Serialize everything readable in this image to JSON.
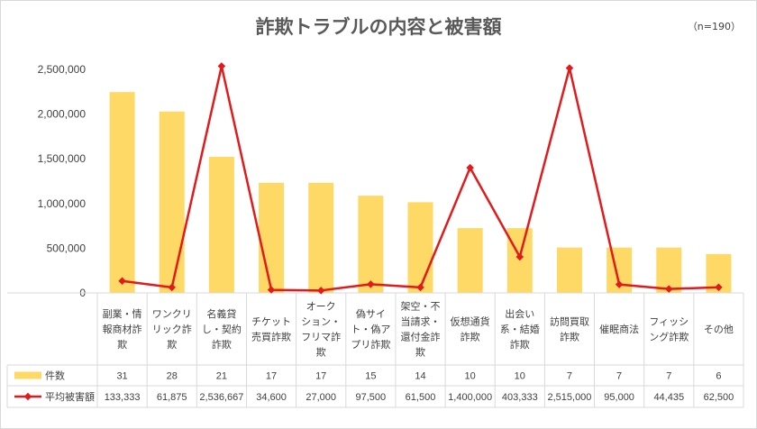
{
  "chart_data": {
    "type": "bar",
    "title": "詐欺トラブルの内容と被害額",
    "note": "（n=190）",
    "categories": [
      "副業・情報商材詐欺",
      "ワンクリック詐欺",
      "名義貸し・契約詐欺",
      "チケット売買詐欺",
      "オークション・フリマ詐欺",
      "偽サイト・偽アプリ詐欺",
      "架空・不当請求・還付金詐欺",
      "仮想通貨詐欺",
      "出会い系・結婚詐欺",
      "訪問買取詐欺",
      "催眠商法",
      "フィッシング詐欺",
      "その他"
    ],
    "category_lines": [
      [
        "副業・情",
        "報商材詐",
        "欺"
      ],
      [
        "ワンクリ",
        "リック詐",
        "欺"
      ],
      [
        "名義貸",
        "し・契約",
        "詐欺"
      ],
      [
        "チケット",
        "売買詐欺"
      ],
      [
        "オーク",
        "ション・",
        "フリマ詐",
        "欺"
      ],
      [
        "偽サイ",
        "ト・偽ア",
        "プリ詐欺"
      ],
      [
        "架空・不",
        "当請求・",
        "還付金詐",
        "欺"
      ],
      [
        "仮想通貨",
        "詐欺"
      ],
      [
        "出会い",
        "系・結婚",
        "詐欺"
      ],
      [
        "訪問買取",
        "詐欺"
      ],
      [
        "催眠商法"
      ],
      [
        "フィッシ",
        "ング詐欺"
      ],
      [
        "その他"
      ]
    ],
    "series": [
      {
        "name": "件数",
        "kind": "bar",
        "color": "#FFD966",
        "values": [
          31,
          28,
          21,
          17,
          17,
          15,
          14,
          10,
          10,
          7,
          7,
          7,
          6
        ],
        "value_labels": [
          "31",
          "28",
          "21",
          "17",
          "17",
          "15",
          "14",
          "10",
          "10",
          "7",
          "7",
          "7",
          "6"
        ]
      },
      {
        "name": "平均被害額",
        "kind": "line",
        "color": "#E31A1C",
        "values": [
          133333,
          61875,
          2536667,
          34600,
          27000,
          97500,
          61500,
          1400000,
          403333,
          2515000,
          95000,
          44435,
          62500
        ],
        "value_labels": [
          "133,333",
          "61,875",
          "2,536,667",
          "34,600",
          "27,000",
          "97,500",
          "61,500",
          "1,400,000",
          "403,333",
          "2,515,000",
          "95,000",
          "44,435",
          "62,500"
        ]
      }
    ],
    "yticks": [
      "0",
      "500,000",
      "1,000,000",
      "1,500,000",
      "2,000,000",
      "2,500,000"
    ],
    "ylim": [
      0,
      2500000
    ],
    "bar_ylim": [
      0,
      34.5
    ],
    "grid": false,
    "legend": "data-table-rows"
  }
}
